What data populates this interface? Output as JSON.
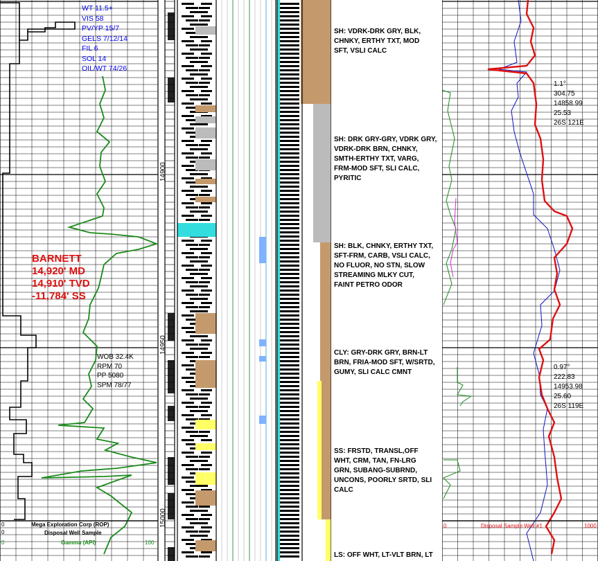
{
  "depth_labels": [
    "14900",
    "14950",
    "15000"
  ],
  "mud_properties": [
    "WT 11.5+",
    "VIS 58",
    "PV/YP 15/7",
    "GELS 7/12/14",
    "FIL 6",
    "SOL 14",
    "OIL/WT 74/26"
  ],
  "drilling_params": [
    "WOB 32.4K",
    "RPM 70",
    "PP 5080",
    "SPM 78/77"
  ],
  "formation_top": [
    "BARNETT",
    "14,920' MD",
    "14,910' TVD",
    "-11,784' SS"
  ],
  "lithology_descriptions": [
    [
      "SH: VDRK-DRK GRY, BLK,",
      "CHNKY, ERTHY TXT, MOD",
      "SFT, VSLI CALC"
    ],
    [
      "SH: DRK GRY-GRY, VDRK GRY,",
      "VDRK-DRK BRN, CHNKY,",
      "SMTH-ERTHY TXT, VARG,",
      "FRM-MOD SFT, SLI CALC,",
      "PYRITIC"
    ],
    [
      "SH: BLK, CHNKY, ERTHY TXT,",
      "SFT-FRM, CARB, VSLI CALC,",
      "NO FLUOR, NO STN, SLOW",
      "STREAMING MLKY CUT,",
      "FAINT PETRO ODOR"
    ],
    [
      "CLY:  GRY-DRK GRY, BRN-LT",
      "BRN, FRIA-MOD SFT, W/SRTD,",
      "GUMY, SLI CALC CMNT"
    ],
    [
      "SS: FRSTD, TRANSL,OFF",
      "WHT, CRM, TAN, FN-LRG",
      "GRN, SUBANG-SUBRND,",
      "UNCONS, POORLY SRTD, SLI",
      "CALC"
    ],
    [
      "LS: OFF WHT, LT-VLT BRN, LT"
    ]
  ],
  "surveys": [
    [
      "1.1°",
      "304.75",
      "14858.99",
      "25.53",
      "26S 121E"
    ],
    [
      "0.97°",
      "222.83",
      "14953.98",
      "25.60",
      "26S 119E"
    ]
  ],
  "footer": {
    "left_line1": "Mega Exploration Corp (ROP)",
    "left_line2": "Disposal Well Sample",
    "left_line3": "Gamma (API)",
    "left_scale_0a": "0",
    "left_scale_0b": "0",
    "left_scale_0c": "0",
    "left_scale_100": "100",
    "right_label": "Disposal Sample Well #1",
    "right_scale_0": "0",
    "right_scale_1000": "1000"
  },
  "colors": {
    "gamma": "#1a8a1a",
    "rop": "#000000",
    "total_gas": "#e01010",
    "gas_blue": "#1010c0",
    "text_blue": "#0000ee",
    "shale_dark": "#000000",
    "clay_brown": "#c49a6c",
    "sand_yellow": "#ffff66",
    "limestone_cyan": "#33dddd"
  },
  "depth_track": {
    "top_md": 14800,
    "bottom_md": 15011
  }
}
